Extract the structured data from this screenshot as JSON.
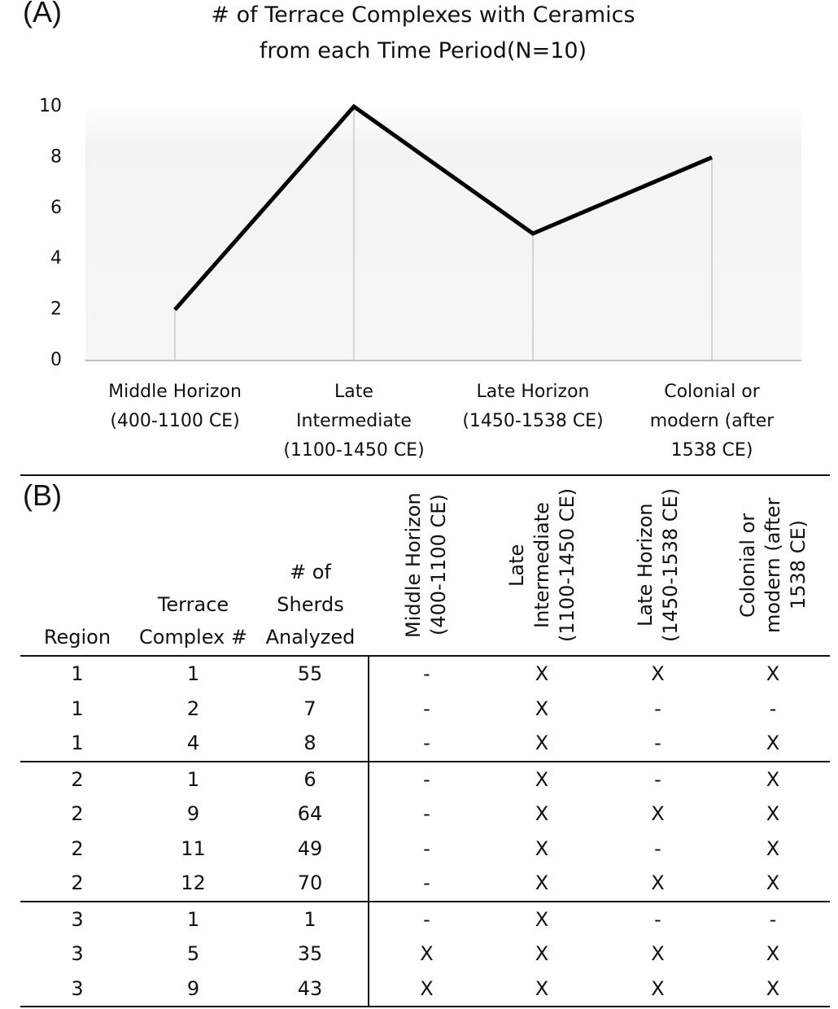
{
  "panel_a": "(A)",
  "chart_data": {
    "type": "line",
    "title": "# of Terrace Complexes with Ceramics from each Time Period(N=10)",
    "categories": [
      "Middle Horizon (400-1100 CE)",
      "Late Intermediate (1100-1450 CE)",
      "Late Horizon (1450-1538 CE)",
      "Colonial or modern (after 1538 CE)"
    ],
    "values": [
      2,
      10,
      5,
      8
    ],
    "color": "#000000",
    "ylim": [
      0,
      10
    ],
    "yticks": [
      0,
      2,
      4,
      6,
      8,
      10
    ],
    "grid": false
  },
  "panel_b": "(B)",
  "table": {
    "columns": [
      "Region",
      "Terrace Complex #",
      "# of Sherds Analyzed",
      "Middle Horizon (400-1100 CE)",
      "Late Intermediate (1100-1450 CE)",
      "Late Horizon (1450-1538 CE)",
      "Colonial or modern (after 1538 CE)"
    ],
    "rows": [
      [
        1,
        1,
        55,
        "-",
        "X",
        "X",
        "X"
      ],
      [
        1,
        2,
        7,
        "-",
        "X",
        "-",
        "-"
      ],
      [
        1,
        4,
        8,
        "-",
        "X",
        "-",
        "X"
      ],
      [
        2,
        1,
        6,
        "-",
        "X",
        "-",
        "X"
      ],
      [
        2,
        9,
        64,
        "-",
        "X",
        "X",
        "X"
      ],
      [
        2,
        11,
        49,
        "-",
        "X",
        "-",
        "X"
      ],
      [
        2,
        12,
        70,
        "-",
        "X",
        "X",
        "X"
      ],
      [
        3,
        1,
        1,
        "-",
        "X",
        "-",
        "-"
      ],
      [
        3,
        5,
        35,
        "X",
        "X",
        "X",
        "X"
      ],
      [
        3,
        9,
        43,
        "X",
        "X",
        "X",
        "X"
      ]
    ]
  }
}
